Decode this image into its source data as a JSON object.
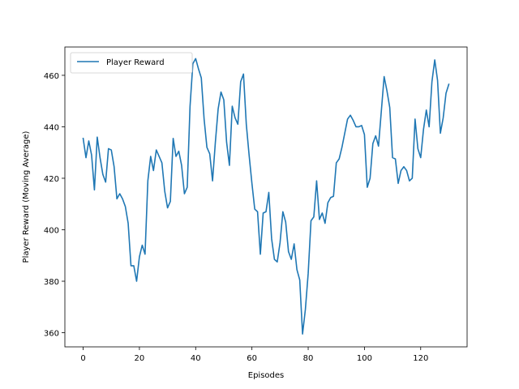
{
  "chart_data": {
    "type": "line",
    "title": "",
    "xlabel": "Episodes",
    "ylabel": "Player Reward (Moving Average)",
    "xlim": [
      -6.5,
      136.5
    ],
    "ylim": [
      354.5,
      471
    ],
    "xticks": [
      0,
      20,
      40,
      60,
      80,
      100,
      120
    ],
    "yticks": [
      360,
      380,
      400,
      420,
      440,
      460
    ],
    "grid": false,
    "legend": "top-left",
    "series": [
      {
        "name": "Player Reward",
        "color": "#1f77b4",
        "x": [
          0,
          1,
          2,
          3,
          4,
          5,
          6,
          7,
          8,
          9,
          10,
          11,
          12,
          13,
          14,
          15,
          16,
          17,
          18,
          19,
          20,
          21,
          22,
          23,
          24,
          25,
          26,
          27,
          28,
          29,
          30,
          31,
          32,
          33,
          34,
          35,
          36,
          37,
          38,
          39,
          40,
          41,
          42,
          43,
          44,
          45,
          46,
          47,
          48,
          49,
          50,
          51,
          52,
          53,
          54,
          55,
          56,
          57,
          58,
          59,
          60,
          61,
          62,
          63,
          64,
          65,
          66,
          67,
          68,
          69,
          70,
          71,
          72,
          73,
          74,
          75,
          76,
          77,
          78,
          79,
          80,
          81,
          82,
          83,
          84,
          85,
          86,
          87,
          88,
          89,
          90,
          91,
          92,
          93,
          94,
          95,
          96,
          97,
          98,
          99,
          100,
          101,
          102,
          103,
          104,
          105,
          106,
          107,
          108,
          109,
          110,
          111,
          112,
          113,
          114,
          115,
          116,
          117,
          118,
          119,
          120,
          121,
          122,
          123,
          124,
          125,
          126,
          127,
          128,
          129,
          130
        ],
        "y": [
          435.5,
          428,
          434.5,
          429,
          415.5,
          436,
          428,
          421.5,
          418.5,
          431.5,
          431,
          424.5,
          412,
          414,
          412,
          409,
          402.5,
          386,
          386,
          380,
          389.5,
          394,
          390.5,
          419,
          428.5,
          423,
          431,
          428.5,
          426,
          415,
          408.5,
          411,
          435.5,
          428.5,
          430.5,
          425,
          414,
          416.5,
          448,
          464.5,
          466.5,
          462.5,
          459,
          443,
          432,
          429.5,
          419,
          434,
          447,
          453.5,
          450.5,
          434,
          425,
          448,
          443.5,
          441,
          457.5,
          460.5,
          441,
          429,
          418,
          408,
          407,
          390.5,
          406.5,
          407,
          414.5,
          396.5,
          388.5,
          387.5,
          395,
          407,
          403,
          391.5,
          388.5,
          394.5,
          384.5,
          380.5,
          359.5,
          369,
          383,
          403.5,
          405,
          419,
          404,
          406.5,
          402.5,
          410.5,
          412.5,
          413,
          426,
          427.5,
          432,
          437.5,
          443,
          444.5,
          442.5,
          440,
          440,
          440.5,
          437,
          416.5,
          420,
          433.5,
          436.5,
          432.5,
          446,
          459.5,
          454,
          447.5,
          428,
          427.5,
          418,
          423,
          424.5,
          423,
          419,
          420,
          443,
          431.5,
          428,
          439,
          446.5,
          440,
          457.5,
          466,
          458,
          437.5,
          443.5,
          453,
          456.5
        ]
      }
    ]
  }
}
